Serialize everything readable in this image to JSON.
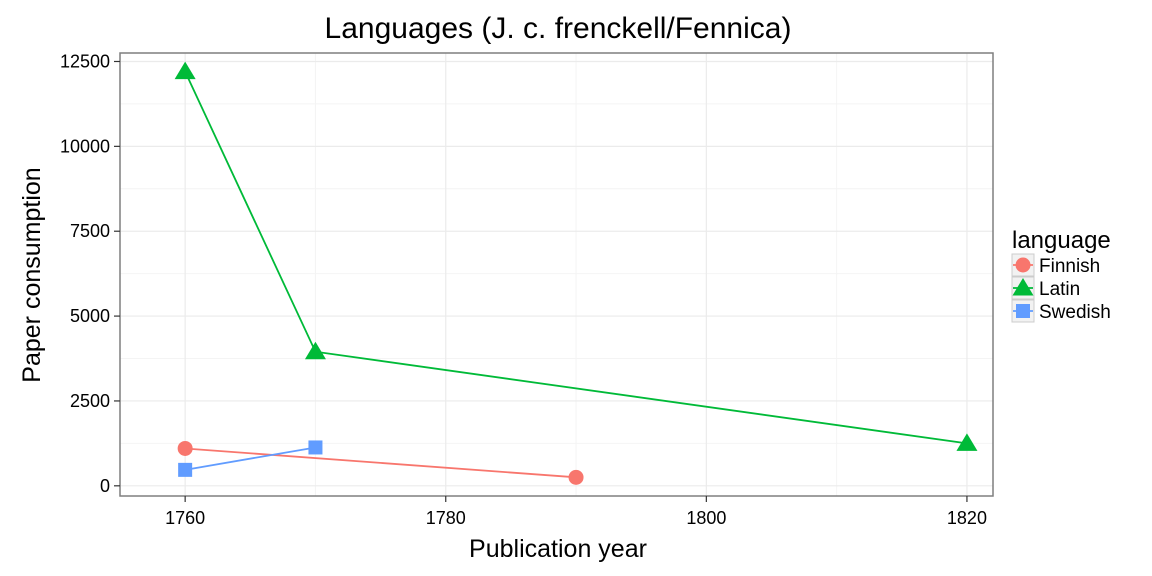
{
  "chart_data": {
    "type": "line",
    "title": "Languages (J. c. frenckell/Fennica)",
    "xlabel": "Publication year",
    "ylabel": "Paper consumption",
    "xlim": [
      1755,
      1822
    ],
    "ylim": [
      -300,
      12750
    ],
    "x_ticks": [
      1760,
      1780,
      1800,
      1820
    ],
    "y_ticks": [
      0,
      2500,
      5000,
      7500,
      10000,
      12500
    ],
    "grid": true,
    "legend": {
      "title": "language",
      "placement": "right"
    },
    "series": [
      {
        "name": "Finnish",
        "color": "#F8766D",
        "marker": "circle",
        "points": [
          [
            1760,
            1100
          ],
          [
            1790,
            250
          ]
        ]
      },
      {
        "name": "Latin",
        "color": "#00BA38",
        "marker": "triangle",
        "points": [
          [
            1760,
            12200
          ],
          [
            1770,
            3950
          ],
          [
            1820,
            1250
          ]
        ]
      },
      {
        "name": "Swedish",
        "color": "#619CFF",
        "marker": "square",
        "points": [
          [
            1760,
            470
          ],
          [
            1770,
            1130
          ]
        ]
      }
    ]
  }
}
